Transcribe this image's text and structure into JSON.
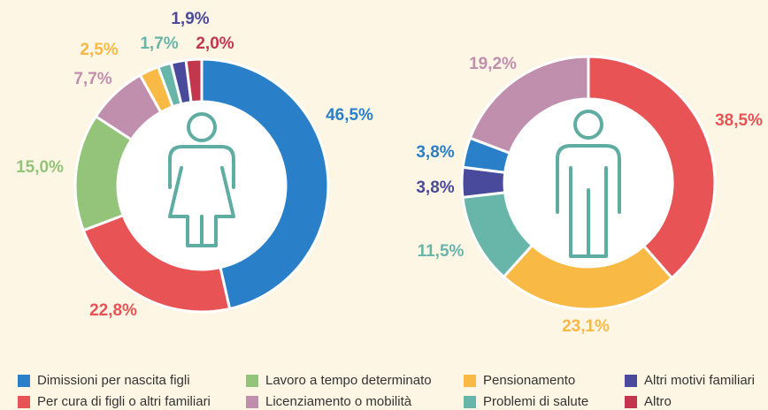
{
  "chart_data": [
    {
      "type": "pie",
      "values": [
        46.5,
        22.8,
        15.0,
        7.7,
        2.5,
        1.7,
        1.9,
        2.0
      ],
      "value_labels": [
        "46,5%",
        "22,8%",
        "15,0%",
        "7,7%",
        "2,5%",
        "1,7%",
        "1,9%",
        "2,0%"
      ],
      "colors": [
        "#2a7fc9",
        "#e85356",
        "#93c47a",
        "#bf8fad",
        "#f9b945",
        "#68b5aa",
        "#4a4a9c",
        "#c2364e"
      ]
    },
    {
      "type": "pie",
      "values": [
        38.5,
        23.1,
        11.5,
        3.8,
        3.8,
        19.2
      ],
      "value_labels": [
        "38,5%",
        "23,1%",
        "11,5%",
        "3,8%",
        "3,8%",
        "19,2%"
      ],
      "colors": [
        "#e85356",
        "#f9b945",
        "#68b5aa",
        "#4a4a9c",
        "#2a7fc9",
        "#bf8fad"
      ]
    }
  ],
  "legend": {
    "names": [
      "Dimissioni per nascita figli",
      "Per cura di figli o altri familiari",
      "Lavoro a tempo determinato",
      "Licenziamento o mobilità",
      "Pensionamento",
      "Problemi di salute",
      "Altri motivi familiari",
      "Altro"
    ],
    "colors": [
      "#2a7fc9",
      "#e85356",
      "#93c47a",
      "#bf8fad",
      "#f9b945",
      "#68b5aa",
      "#4a4a9c",
      "#c2364e"
    ]
  }
}
